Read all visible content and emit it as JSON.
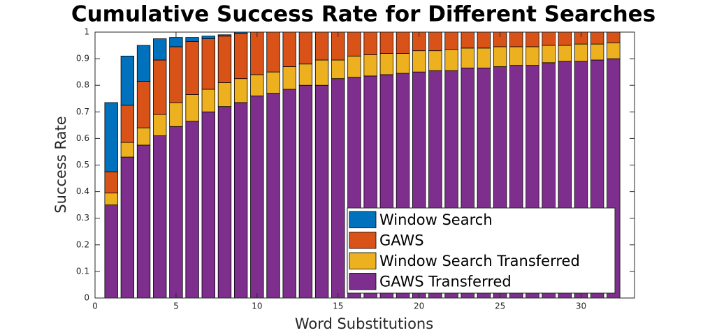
{
  "chart_data": {
    "type": "stacked_bar",
    "title": "Cumulative Success Rate for Different Searches",
    "x_label": "Word Substitutions",
    "y_label": "Success Rate",
    "x": [
      1,
      2,
      3,
      4,
      5,
      6,
      7,
      8,
      9,
      10,
      11,
      12,
      13,
      14,
      15,
      16,
      17,
      18,
      19,
      20,
      21,
      22,
      23,
      24,
      25,
      26,
      27,
      28,
      29,
      30,
      31,
      32
    ],
    "series": [
      {
        "name": "Window Search",
        "color": "#0072bd",
        "values": [
          0.26,
          0.185,
          0.135,
          0.08,
          0.035,
          0.015,
          0.01,
          0.005,
          0.005,
          0,
          0,
          0,
          0,
          0,
          0,
          0,
          0,
          0,
          0,
          0,
          0,
          0,
          0,
          0,
          0,
          0,
          0,
          0,
          0,
          0,
          0,
          0
        ]
      },
      {
        "name": "GAWS",
        "color": "#d95319",
        "values": [
          0.08,
          0.14,
          0.175,
          0.205,
          0.21,
          0.2,
          0.19,
          0.175,
          0.17,
          0.16,
          0.15,
          0.13,
          0.12,
          0.105,
          0.105,
          0.09,
          0.085,
          0.08,
          0.08,
          0.07,
          0.07,
          0.065,
          0.06,
          0.06,
          0.055,
          0.055,
          0.055,
          0.05,
          0.05,
          0.045,
          0.045,
          0.04
        ]
      },
      {
        "name": "Window Search Transferred",
        "color": "#edb120",
        "values": [
          0.045,
          0.055,
          0.065,
          0.08,
          0.09,
          0.1,
          0.085,
          0.09,
          0.09,
          0.08,
          0.08,
          0.085,
          0.08,
          0.095,
          0.07,
          0.08,
          0.08,
          0.08,
          0.075,
          0.08,
          0.075,
          0.08,
          0.075,
          0.075,
          0.075,
          0.07,
          0.07,
          0.065,
          0.06,
          0.065,
          0.06,
          0.06
        ]
      },
      {
        "name": "GAWS Transferred",
        "color": "#7e2f8e",
        "values": [
          0.35,
          0.53,
          0.575,
          0.61,
          0.645,
          0.665,
          0.7,
          0.72,
          0.735,
          0.76,
          0.77,
          0.785,
          0.8,
          0.8,
          0.825,
          0.83,
          0.835,
          0.84,
          0.845,
          0.85,
          0.855,
          0.855,
          0.865,
          0.865,
          0.87,
          0.875,
          0.875,
          0.885,
          0.89,
          0.89,
          0.895,
          0.9
        ]
      }
    ],
    "xlim": [
      0,
      33.3
    ],
    "ylim": [
      0,
      1
    ],
    "xticks": [
      0,
      5,
      10,
      15,
      20,
      25,
      30
    ],
    "yticks": [
      0,
      0.1,
      0.2,
      0.3,
      0.4,
      0.5,
      0.6,
      0.7,
      0.8,
      0.9,
      1
    ],
    "legend_position": "lower right"
  }
}
